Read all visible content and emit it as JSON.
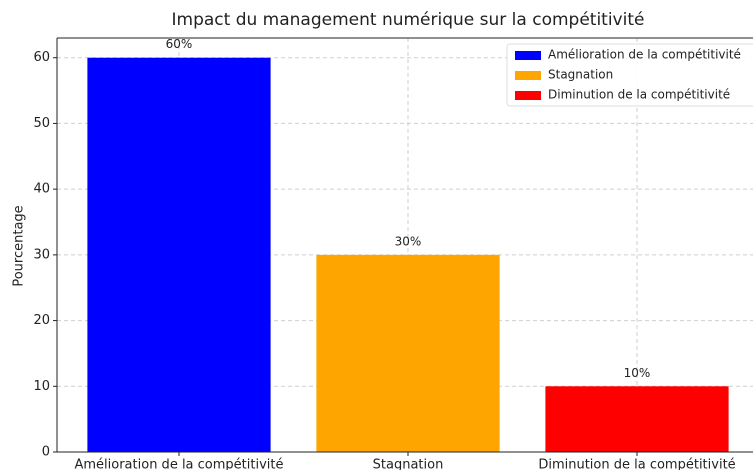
{
  "chart_data": {
    "type": "bar",
    "title": "Impact du management numérique sur la compétitivité",
    "y_label": "Pourcentage",
    "categories": [
      "Amélioration de la compétitivité",
      "Stagnation",
      "Diminution de la compétitivité"
    ],
    "values": [
      60,
      30,
      10
    ],
    "value_labels": [
      "60%",
      "30%",
      "10%"
    ],
    "colors": [
      "#0000ff",
      "#ffa500",
      "#ff0000"
    ],
    "ylim": [
      0,
      63
    ],
    "yticks": [
      0,
      10,
      20,
      30,
      40,
      50,
      60
    ],
    "grid": true,
    "legend": "upper right"
  }
}
